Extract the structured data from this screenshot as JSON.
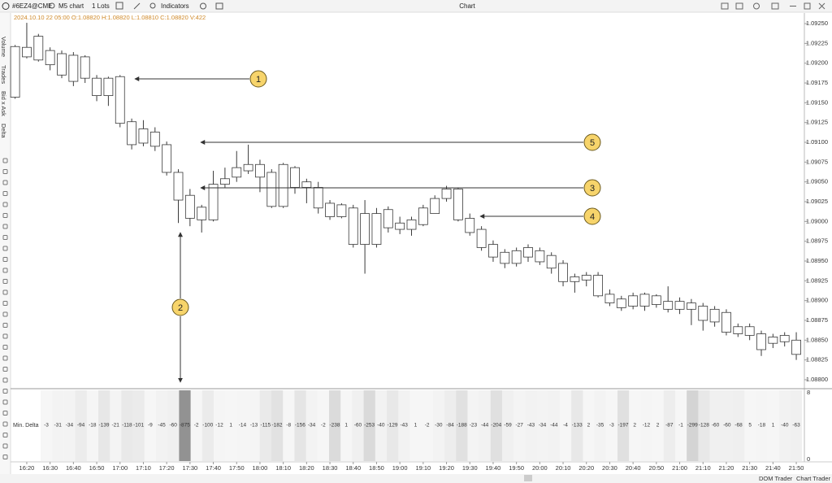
{
  "toolbar": {
    "symbol": "#6EZ4@CME",
    "timeframe": "M5 chart",
    "lots": "1 Lots",
    "indicators": "Indicators",
    "window_title": "Chart"
  },
  "info_line": "2024.10.10 22 05:00 O:1.08820 H:1.08820 L:1.08810 C:1.08820 V:422",
  "sidebar_tabs": [
    "Volume",
    "Trades",
    "Bid x Ask",
    "Delta"
  ],
  "chart_data": {
    "type": "candlestick",
    "categories": [
      null,
      "16:20",
      null,
      "16:30",
      null,
      "16:40",
      null,
      "16:50",
      null,
      "17:00",
      null,
      "17:10",
      null,
      "17:20",
      null,
      "17:30",
      null,
      "17:40",
      null,
      "17:50",
      null,
      "18:00",
      null,
      "18:10",
      null,
      "18:20",
      null,
      "18:30",
      null,
      "18:40",
      null,
      "18:50",
      null,
      "19:00",
      null,
      "19:10",
      null,
      "19:20",
      null,
      "19:30",
      null,
      "19:40",
      null,
      "19:50",
      null,
      "20:00",
      null,
      "20:10",
      null,
      "20:20",
      null,
      "20:30",
      null,
      "20:40",
      null,
      "20:50",
      null,
      "21:00",
      null,
      "21:10",
      null,
      "21:20",
      null,
      "21:30",
      null,
      "21:40",
      null,
      "21:50"
    ],
    "open": [
      1.09157,
      1.0922,
      1.09234,
      1.09216,
      1.09212,
      1.0921,
      1.09208,
      1.09181,
      1.09181,
      1.09183,
      1.09126,
      1.09117,
      1.09113,
      1.09097,
      1.09062,
      1.09033,
      1.09018,
      1.09002,
      1.09047,
      1.09056,
      1.09072,
      1.09072,
      1.09062,
      1.09019,
      1.09068,
      1.0905,
      1.09043,
      1.09023,
      1.09021,
      1.09017,
      1.08971,
      1.0901,
      1.09015,
      1.08998,
      1.0899,
      1.08996,
      1.0901,
      1.09029,
      1.09041,
      1.09004,
      1.0899,
      1.08971,
      1.08961,
      1.08947,
      1.08967,
      1.08963,
      1.08957,
      1.08947,
      1.0893,
      1.08932,
      1.08932,
      1.08908,
      1.08902,
      1.08906,
      1.08908,
      1.08906,
      1.08899,
      1.08899,
      1.08897,
      1.08893,
      1.08889,
      1.08885,
      1.08867,
      1.08867,
      1.08858,
      1.08854,
      1.08856,
      1.0885
    ],
    "high": [
      1.09223,
      1.09251,
      1.09237,
      1.0922,
      1.09216,
      1.09214,
      1.0921,
      1.09185,
      1.09183,
      1.09185,
      1.0913,
      1.09128,
      1.09119,
      1.09101,
      1.09066,
      1.09041,
      1.09021,
      1.09064,
      1.09068,
      1.09089,
      1.09097,
      1.09078,
      1.09066,
      1.09074,
      1.0907,
      1.09054,
      1.0905,
      1.09027,
      1.09023,
      1.09021,
      1.09027,
      1.09017,
      1.09019,
      1.09006,
      1.09006,
      1.09021,
      1.09033,
      1.09045,
      1.09043,
      1.0901,
      1.08994,
      1.08976,
      1.08965,
      1.08967,
      1.08971,
      1.08967,
      1.08961,
      1.08951,
      1.08934,
      1.08936,
      1.08936,
      1.08914,
      1.08906,
      1.0891,
      1.0891,
      1.08908,
      1.08918,
      1.08904,
      1.08902,
      1.08897,
      1.08893,
      1.08889,
      1.08871,
      1.08871,
      1.08862,
      1.08858,
      1.0886,
      1.0886
    ],
    "low": [
      1.09155,
      1.09206,
      1.09202,
      1.09191,
      1.09181,
      1.09171,
      1.09175,
      1.09152,
      1.09146,
      1.09119,
      1.09091,
      1.09095,
      1.09089,
      1.09058,
      1.08998,
      1.08994,
      1.08986,
      1.09,
      1.09043,
      1.0905,
      1.0906,
      1.09037,
      1.09017,
      1.09017,
      1.09035,
      1.09023,
      1.0901,
      1.09002,
      1.09004,
      1.08967,
      1.08934,
      1.08967,
      1.08986,
      1.08984,
      1.08982,
      1.08994,
      1.0901,
      1.09025,
      1.09,
      1.08982,
      1.08963,
      1.08949,
      1.08941,
      1.08943,
      1.08949,
      1.08945,
      1.08934,
      1.08918,
      1.0891,
      1.08918,
      1.08904,
      1.08893,
      1.08887,
      1.08889,
      1.08887,
      1.08891,
      1.08885,
      1.08883,
      1.08869,
      1.08862,
      1.08867,
      1.08856,
      1.08854,
      1.0885,
      1.0883,
      1.0884,
      1.08842,
      1.08825
    ],
    "close": [
      1.09221,
      1.09208,
      1.09204,
      1.09198,
      1.09185,
      1.09177,
      1.09181,
      1.09159,
      1.09159,
      1.09124,
      1.09097,
      1.09099,
      1.09095,
      1.09062,
      1.09027,
      1.09004,
      1.09002,
      1.09047,
      1.09054,
      1.09068,
      1.09064,
      1.09056,
      1.09019,
      1.09072,
      1.09043,
      1.09043,
      1.09017,
      1.09006,
      1.09006,
      1.08971,
      1.0901,
      1.08971,
      1.08992,
      1.0899,
      1.09002,
      1.09017,
      1.09029,
      1.09041,
      1.09002,
      1.08986,
      1.08967,
      1.08955,
      1.08947,
      1.08963,
      1.08955,
      1.08949,
      1.08941,
      1.08924,
      1.08924,
      1.08926,
      1.08906,
      1.08897,
      1.08891,
      1.08893,
      1.08893,
      1.08895,
      1.08889,
      1.08889,
      1.08889,
      1.08875,
      1.08873,
      1.0886,
      1.08858,
      1.08856,
      1.08838,
      1.08846,
      1.08848,
      1.08832
    ],
    "color": "#ffffff",
    "edge_color": "#3a3a3a",
    "ylim": [
      1.0879,
      1.0926
    ],
    "yticks": [
      {
        "value": 1.0925,
        "label": "1.09250"
      },
      1.09225,
      {
        "value": 1.092,
        "label": "1.09200"
      },
      1.09175,
      {
        "value": 1.0915,
        "label": "1.09150"
      },
      1.09125,
      {
        "value": 1.091,
        "label": "1.09100"
      },
      1.09075,
      {
        "value": 1.0905,
        "label": "1.09050"
      },
      1.09025,
      {
        "value": 1.09,
        "label": "1.09000"
      },
      1.08975,
      {
        "value": 1.0895,
        "label": "1.08950"
      },
      1.08925,
      {
        "value": 1.089,
        "label": "1.08900"
      },
      1.08875,
      {
        "value": 1.0885,
        "label": "1.08850"
      },
      1.08825,
      {
        "value": 1.088,
        "label": "1.08800"
      }
    ]
  },
  "delta_panel": {
    "label": "Min. Delta",
    "values": [
      -3,
      -31,
      -34,
      -94,
      -18,
      -139,
      -21,
      -118,
      -101,
      -9,
      -45,
      -60,
      -875,
      -2,
      -100,
      -12,
      1,
      -14,
      -13,
      -115,
      -182,
      -8,
      -156,
      -34,
      -2,
      -238,
      1,
      -60,
      -253,
      -40,
      -129,
      -43,
      1,
      -2,
      -30,
      -84,
      -188,
      -23,
      -44,
      -204,
      -59,
      -27,
      -43,
      -34,
      -44,
      -4,
      -133,
      2,
      -35,
      -3,
      -197,
      2,
      -12,
      2,
      -87,
      -1,
      -299,
      -128,
      -60,
      -60,
      -68,
      5,
      -18,
      1,
      -40,
      -63
    ],
    "axis_ticks": [
      8,
      0
    ]
  },
  "annotations": [
    "1",
    "2",
    "3",
    "4",
    "5"
  ],
  "bottom_bar": [
    "DOM Trader",
    "Chart Trader"
  ]
}
